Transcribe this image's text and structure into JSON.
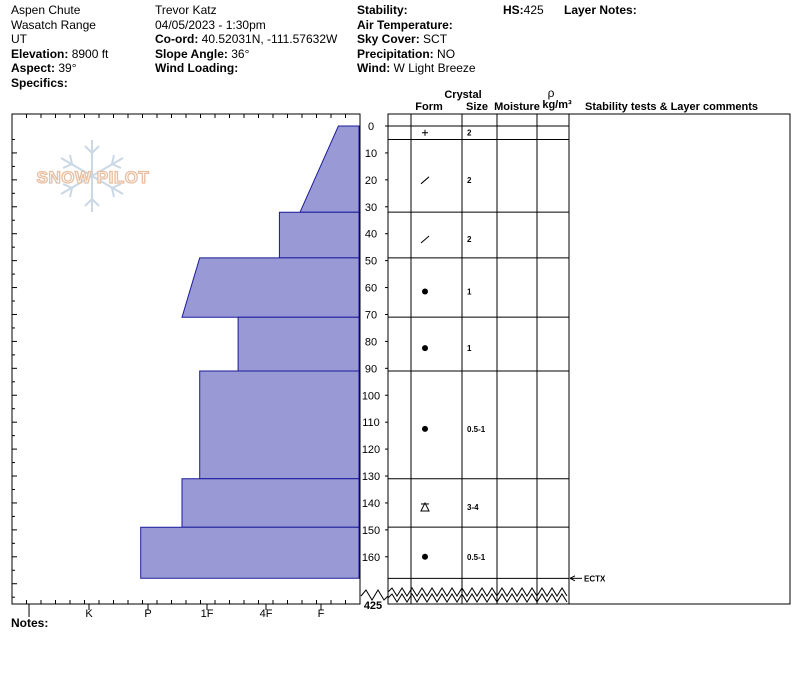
{
  "header": {
    "col1": {
      "location": "Aspen Chute",
      "range": "Wasatch Range",
      "state": "UT",
      "elevation_label": "Elevation:",
      "elevation_value": " 8900 ft",
      "aspect_label": "Aspect:",
      "aspect_value": " 39°",
      "specifics_label": "Specifics:"
    },
    "col2": {
      "observer": "Trevor Katz",
      "datetime": "04/05/2023 - 1:30pm",
      "coord_label": "Co-ord:",
      "coord_value": " 40.52031N, -111.57632W",
      "slope_label": "Slope Angle:",
      "slope_value": " 36°",
      "wind_loading_label": "Wind Loading:"
    },
    "col3": {
      "stability_label": "Stability:",
      "air_temp_label": "Air Temperature:",
      "sky_label": "Sky Cover:",
      "sky_value": " SCT",
      "precip_label": "Precipitation:",
      "precip_value": " NO",
      "wind_label": "Wind:",
      "wind_value": "  W Light Breeze"
    },
    "hs_label": "HS:",
    "hs_value": "425",
    "layer_notes_label": "Layer Notes:"
  },
  "columns": {
    "crystal": "Crystal",
    "form": "Form",
    "size": "Size",
    "moisture": "Moisture",
    "rho": "ρ",
    "density_unit": "kg/m³",
    "stability_comments": "Stability tests & Layer comments"
  },
  "watermark": {
    "text": "SNOW PILOT",
    "icon": "snowflake-icon"
  },
  "notes_label": "Notes:",
  "chart_data": {
    "type": "snow-profile",
    "depth_unit": "cm",
    "depth_ticks": [
      0,
      10,
      20,
      30,
      40,
      50,
      60,
      70,
      80,
      90,
      100,
      110,
      120,
      130,
      140,
      150,
      160
    ],
    "total_depth_label": "425",
    "hardness_scale": [
      "I",
      "K",
      "P",
      "1F",
      "4F",
      "F"
    ],
    "hardness_profile": [
      {
        "top": 0,
        "bottom": 32,
        "hardness_top": 0.35,
        "hardness_bottom": 1.0
      },
      {
        "top": 32,
        "bottom": 49,
        "hardness_top": 1.35,
        "hardness_bottom": 1.35
      },
      {
        "top": 49,
        "bottom": 71,
        "hardness_top": 2.7,
        "hardness_bottom": 3.0
      },
      {
        "top": 71,
        "bottom": 91,
        "hardness_top": 2.05,
        "hardness_bottom": 2.05
      },
      {
        "top": 91,
        "bottom": 131,
        "hardness_top": 2.7,
        "hardness_bottom": 2.7
      },
      {
        "top": 131,
        "bottom": 149,
        "hardness_top": 3.0,
        "hardness_bottom": 3.0
      },
      {
        "top": 149,
        "bottom": 168,
        "hardness_top": 3.7,
        "hardness_bottom": 3.7
      }
    ],
    "layers": [
      {
        "top": 0,
        "bottom": 5,
        "form": "precip-plus",
        "size": "2"
      },
      {
        "top": 5,
        "bottom": 32,
        "form": "decomposing-slash",
        "size": "2"
      },
      {
        "top": 32,
        "bottom": 49,
        "form": "decomposing-slash",
        "size": "2"
      },
      {
        "top": 49,
        "bottom": 71,
        "form": "rounded-dot",
        "size": "1"
      },
      {
        "top": 71,
        "bottom": 91,
        "form": "rounded-dot",
        "size": "1"
      },
      {
        "top": 91,
        "bottom": 131,
        "form": "rounded-dot",
        "size": "0.5-1"
      },
      {
        "top": 131,
        "bottom": 149,
        "form": "depth-hoar",
        "size": "3-4"
      },
      {
        "top": 149,
        "bottom": 168,
        "form": "rounded-dot",
        "size": "0.5-1"
      }
    ],
    "stability_tests": [
      {
        "depth": 168,
        "label": "ECTX"
      }
    ]
  }
}
